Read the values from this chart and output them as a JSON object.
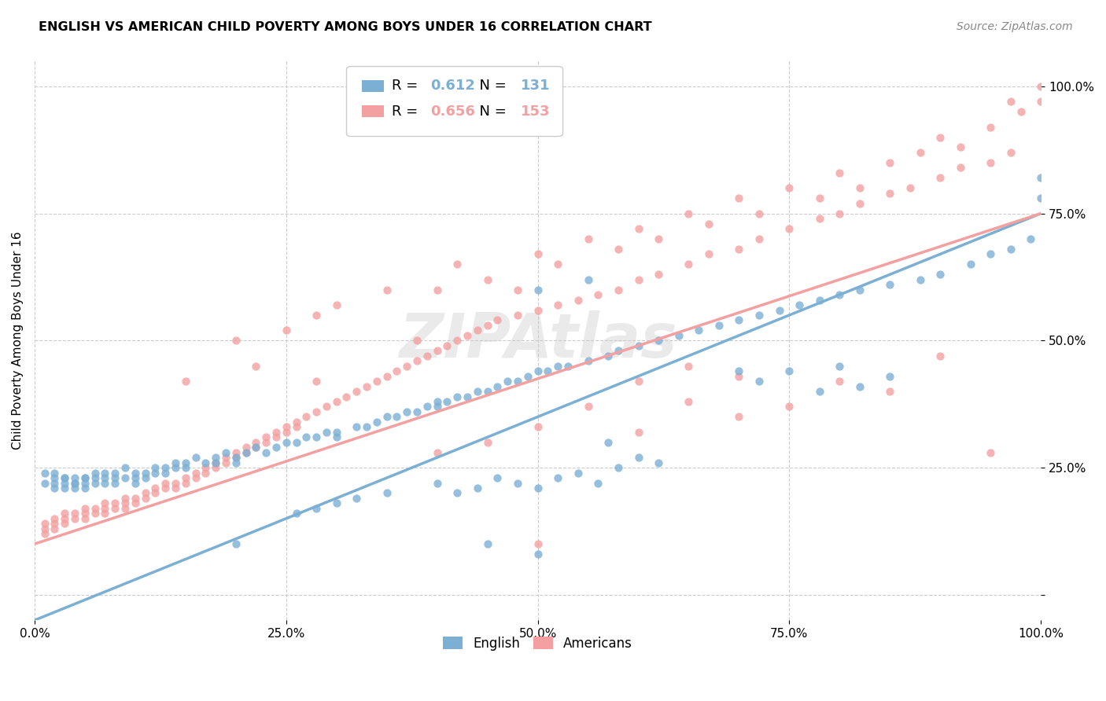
{
  "title": "ENGLISH VS AMERICAN CHILD POVERTY AMONG BOYS UNDER 16 CORRELATION CHART",
  "source": "Source: ZipAtlas.com",
  "ylabel": "Child Poverty Among Boys Under 16",
  "xlim": [
    0.0,
    1.0
  ],
  "ylim": [
    -0.05,
    1.05
  ],
  "xticks": [
    0.0,
    0.25,
    0.5,
    0.75,
    1.0
  ],
  "xticklabels": [
    "0.0%",
    "25.0%",
    "50.0%",
    "75.0%",
    "100.0%"
  ],
  "yticks": [
    0.0,
    0.25,
    0.5,
    0.75,
    1.0
  ],
  "yticklabels": [
    "",
    "25.0%",
    "50.0%",
    "75.0%",
    "100.0%"
  ],
  "english_color": "#7BAFD4",
  "american_color": "#F4A0A0",
  "english_R": 0.612,
  "english_N": 131,
  "american_R": 0.656,
  "american_N": 153,
  "english_line_x": [
    0.0,
    1.0
  ],
  "english_line_y": [
    -0.05,
    0.75
  ],
  "american_line_x": [
    0.0,
    1.0
  ],
  "american_line_y": [
    0.1,
    0.75
  ],
  "legend_labels": [
    "English",
    "Americans"
  ],
  "english_scatter": [
    [
      0.01,
      0.22
    ],
    [
      0.01,
      0.24
    ],
    [
      0.02,
      0.23
    ],
    [
      0.02,
      0.22
    ],
    [
      0.02,
      0.21
    ],
    [
      0.02,
      0.24
    ],
    [
      0.03,
      0.23
    ],
    [
      0.03,
      0.22
    ],
    [
      0.03,
      0.21
    ],
    [
      0.03,
      0.23
    ],
    [
      0.04,
      0.22
    ],
    [
      0.04,
      0.23
    ],
    [
      0.04,
      0.21
    ],
    [
      0.04,
      0.22
    ],
    [
      0.05,
      0.23
    ],
    [
      0.05,
      0.22
    ],
    [
      0.05,
      0.21
    ],
    [
      0.05,
      0.23
    ],
    [
      0.06,
      0.22
    ],
    [
      0.06,
      0.23
    ],
    [
      0.06,
      0.24
    ],
    [
      0.07,
      0.23
    ],
    [
      0.07,
      0.22
    ],
    [
      0.07,
      0.24
    ],
    [
      0.08,
      0.23
    ],
    [
      0.08,
      0.22
    ],
    [
      0.08,
      0.24
    ],
    [
      0.09,
      0.23
    ],
    [
      0.09,
      0.25
    ],
    [
      0.1,
      0.24
    ],
    [
      0.1,
      0.23
    ],
    [
      0.1,
      0.22
    ],
    [
      0.11,
      0.24
    ],
    [
      0.11,
      0.23
    ],
    [
      0.12,
      0.25
    ],
    [
      0.12,
      0.24
    ],
    [
      0.13,
      0.25
    ],
    [
      0.13,
      0.24
    ],
    [
      0.14,
      0.26
    ],
    [
      0.14,
      0.25
    ],
    [
      0.15,
      0.26
    ],
    [
      0.15,
      0.25
    ],
    [
      0.16,
      0.27
    ],
    [
      0.17,
      0.26
    ],
    [
      0.18,
      0.27
    ],
    [
      0.18,
      0.26
    ],
    [
      0.19,
      0.28
    ],
    [
      0.2,
      0.27
    ],
    [
      0.2,
      0.26
    ],
    [
      0.21,
      0.28
    ],
    [
      0.22,
      0.29
    ],
    [
      0.23,
      0.28
    ],
    [
      0.24,
      0.29
    ],
    [
      0.25,
      0.3
    ],
    [
      0.26,
      0.3
    ],
    [
      0.27,
      0.31
    ],
    [
      0.28,
      0.31
    ],
    [
      0.29,
      0.32
    ],
    [
      0.3,
      0.32
    ],
    [
      0.3,
      0.31
    ],
    [
      0.32,
      0.33
    ],
    [
      0.33,
      0.33
    ],
    [
      0.34,
      0.34
    ],
    [
      0.35,
      0.35
    ],
    [
      0.36,
      0.35
    ],
    [
      0.37,
      0.36
    ],
    [
      0.38,
      0.36
    ],
    [
      0.39,
      0.37
    ],
    [
      0.4,
      0.38
    ],
    [
      0.4,
      0.37
    ],
    [
      0.41,
      0.38
    ],
    [
      0.42,
      0.39
    ],
    [
      0.43,
      0.39
    ],
    [
      0.44,
      0.4
    ],
    [
      0.45,
      0.4
    ],
    [
      0.46,
      0.41
    ],
    [
      0.47,
      0.42
    ],
    [
      0.48,
      0.42
    ],
    [
      0.49,
      0.43
    ],
    [
      0.5,
      0.44
    ],
    [
      0.51,
      0.44
    ],
    [
      0.52,
      0.45
    ],
    [
      0.53,
      0.45
    ],
    [
      0.55,
      0.46
    ],
    [
      0.57,
      0.47
    ],
    [
      0.58,
      0.48
    ],
    [
      0.6,
      0.49
    ],
    [
      0.62,
      0.5
    ],
    [
      0.64,
      0.51
    ],
    [
      0.66,
      0.52
    ],
    [
      0.68,
      0.53
    ],
    [
      0.7,
      0.54
    ],
    [
      0.72,
      0.55
    ],
    [
      0.74,
      0.56
    ],
    [
      0.76,
      0.57
    ],
    [
      0.78,
      0.58
    ],
    [
      0.8,
      0.59
    ],
    [
      0.82,
      0.6
    ],
    [
      0.85,
      0.61
    ],
    [
      0.88,
      0.62
    ],
    [
      0.9,
      0.63
    ],
    [
      0.93,
      0.65
    ],
    [
      0.95,
      0.67
    ],
    [
      0.97,
      0.68
    ],
    [
      0.99,
      0.7
    ],
    [
      0.4,
      0.22
    ],
    [
      0.42,
      0.2
    ],
    [
      0.44,
      0.21
    ],
    [
      0.46,
      0.23
    ],
    [
      0.48,
      0.22
    ],
    [
      0.5,
      0.21
    ],
    [
      0.52,
      0.23
    ],
    [
      0.54,
      0.24
    ],
    [
      0.56,
      0.22
    ],
    [
      0.58,
      0.25
    ],
    [
      0.6,
      0.27
    ],
    [
      0.62,
      0.26
    ],
    [
      0.26,
      0.16
    ],
    [
      0.28,
      0.17
    ],
    [
      0.3,
      0.18
    ],
    [
      0.32,
      0.19
    ],
    [
      0.35,
      0.2
    ],
    [
      0.7,
      0.44
    ],
    [
      0.72,
      0.42
    ],
    [
      0.75,
      0.44
    ],
    [
      0.78,
      0.4
    ],
    [
      0.8,
      0.45
    ],
    [
      0.82,
      0.41
    ],
    [
      0.85,
      0.43
    ],
    [
      0.5,
      0.6
    ],
    [
      0.55,
      0.62
    ],
    [
      0.57,
      0.3
    ],
    [
      0.2,
      0.1
    ],
    [
      0.45,
      0.1
    ],
    [
      0.5,
      0.08
    ],
    [
      1.0,
      0.78
    ],
    [
      1.0,
      0.82
    ]
  ],
  "american_scatter": [
    [
      0.01,
      0.13
    ],
    [
      0.01,
      0.14
    ],
    [
      0.01,
      0.12
    ],
    [
      0.02,
      0.15
    ],
    [
      0.02,
      0.14
    ],
    [
      0.02,
      0.13
    ],
    [
      0.03,
      0.16
    ],
    [
      0.03,
      0.15
    ],
    [
      0.03,
      0.14
    ],
    [
      0.04,
      0.16
    ],
    [
      0.04,
      0.15
    ],
    [
      0.05,
      0.17
    ],
    [
      0.05,
      0.16
    ],
    [
      0.05,
      0.15
    ],
    [
      0.06,
      0.17
    ],
    [
      0.06,
      0.16
    ],
    [
      0.07,
      0.18
    ],
    [
      0.07,
      0.17
    ],
    [
      0.07,
      0.16
    ],
    [
      0.08,
      0.18
    ],
    [
      0.08,
      0.17
    ],
    [
      0.09,
      0.19
    ],
    [
      0.09,
      0.18
    ],
    [
      0.09,
      0.17
    ],
    [
      0.1,
      0.19
    ],
    [
      0.1,
      0.18
    ],
    [
      0.11,
      0.2
    ],
    [
      0.11,
      0.19
    ],
    [
      0.12,
      0.21
    ],
    [
      0.12,
      0.2
    ],
    [
      0.13,
      0.22
    ],
    [
      0.13,
      0.21
    ],
    [
      0.14,
      0.22
    ],
    [
      0.14,
      0.21
    ],
    [
      0.15,
      0.23
    ],
    [
      0.15,
      0.22
    ],
    [
      0.16,
      0.24
    ],
    [
      0.16,
      0.23
    ],
    [
      0.17,
      0.25
    ],
    [
      0.17,
      0.24
    ],
    [
      0.18,
      0.26
    ],
    [
      0.18,
      0.25
    ],
    [
      0.19,
      0.27
    ],
    [
      0.19,
      0.26
    ],
    [
      0.2,
      0.28
    ],
    [
      0.2,
      0.27
    ],
    [
      0.21,
      0.29
    ],
    [
      0.21,
      0.28
    ],
    [
      0.22,
      0.3
    ],
    [
      0.22,
      0.29
    ],
    [
      0.23,
      0.31
    ],
    [
      0.23,
      0.3
    ],
    [
      0.24,
      0.32
    ],
    [
      0.24,
      0.31
    ],
    [
      0.25,
      0.33
    ],
    [
      0.25,
      0.32
    ],
    [
      0.26,
      0.34
    ],
    [
      0.26,
      0.33
    ],
    [
      0.27,
      0.35
    ],
    [
      0.28,
      0.36
    ],
    [
      0.29,
      0.37
    ],
    [
      0.3,
      0.38
    ],
    [
      0.31,
      0.39
    ],
    [
      0.32,
      0.4
    ],
    [
      0.33,
      0.41
    ],
    [
      0.34,
      0.42
    ],
    [
      0.35,
      0.43
    ],
    [
      0.36,
      0.44
    ],
    [
      0.37,
      0.45
    ],
    [
      0.38,
      0.46
    ],
    [
      0.39,
      0.47
    ],
    [
      0.4,
      0.48
    ],
    [
      0.41,
      0.49
    ],
    [
      0.42,
      0.5
    ],
    [
      0.43,
      0.51
    ],
    [
      0.44,
      0.52
    ],
    [
      0.45,
      0.53
    ],
    [
      0.46,
      0.54
    ],
    [
      0.48,
      0.55
    ],
    [
      0.5,
      0.56
    ],
    [
      0.52,
      0.57
    ],
    [
      0.54,
      0.58
    ],
    [
      0.56,
      0.59
    ],
    [
      0.58,
      0.6
    ],
    [
      0.6,
      0.62
    ],
    [
      0.62,
      0.63
    ],
    [
      0.65,
      0.65
    ],
    [
      0.67,
      0.67
    ],
    [
      0.7,
      0.68
    ],
    [
      0.72,
      0.7
    ],
    [
      0.75,
      0.72
    ],
    [
      0.78,
      0.74
    ],
    [
      0.8,
      0.75
    ],
    [
      0.82,
      0.77
    ],
    [
      0.85,
      0.79
    ],
    [
      0.87,
      0.8
    ],
    [
      0.9,
      0.82
    ],
    [
      0.92,
      0.84
    ],
    [
      0.95,
      0.85
    ],
    [
      0.97,
      0.87
    ],
    [
      0.15,
      0.42
    ],
    [
      0.2,
      0.5
    ],
    [
      0.25,
      0.52
    ],
    [
      0.22,
      0.45
    ],
    [
      0.28,
      0.55
    ],
    [
      0.3,
      0.57
    ],
    [
      0.35,
      0.6
    ],
    [
      0.28,
      0.42
    ],
    [
      0.38,
      0.5
    ],
    [
      0.4,
      0.6
    ],
    [
      0.42,
      0.65
    ],
    [
      0.45,
      0.62
    ],
    [
      0.48,
      0.6
    ],
    [
      0.5,
      0.67
    ],
    [
      0.52,
      0.65
    ],
    [
      0.55,
      0.7
    ],
    [
      0.58,
      0.68
    ],
    [
      0.6,
      0.72
    ],
    [
      0.62,
      0.7
    ],
    [
      0.65,
      0.75
    ],
    [
      0.67,
      0.73
    ],
    [
      0.7,
      0.78
    ],
    [
      0.72,
      0.75
    ],
    [
      0.75,
      0.8
    ],
    [
      0.78,
      0.78
    ],
    [
      0.8,
      0.83
    ],
    [
      0.82,
      0.8
    ],
    [
      0.85,
      0.85
    ],
    [
      0.88,
      0.87
    ],
    [
      0.9,
      0.9
    ],
    [
      0.92,
      0.88
    ],
    [
      0.95,
      0.92
    ],
    [
      0.98,
      0.95
    ],
    [
      1.0,
      0.97
    ],
    [
      1.0,
      1.0
    ],
    [
      0.97,
      0.97
    ],
    [
      0.85,
      0.4
    ],
    [
      0.9,
      0.47
    ],
    [
      0.95,
      0.28
    ],
    [
      0.6,
      0.32
    ],
    [
      0.5,
      0.1
    ],
    [
      0.75,
      0.37
    ],
    [
      0.8,
      0.42
    ],
    [
      0.65,
      0.38
    ],
    [
      0.7,
      0.43
    ],
    [
      0.55,
      0.37
    ],
    [
      0.4,
      0.28
    ],
    [
      0.45,
      0.3
    ],
    [
      0.5,
      0.33
    ],
    [
      0.6,
      0.42
    ],
    [
      0.65,
      0.45
    ],
    [
      0.7,
      0.35
    ]
  ]
}
